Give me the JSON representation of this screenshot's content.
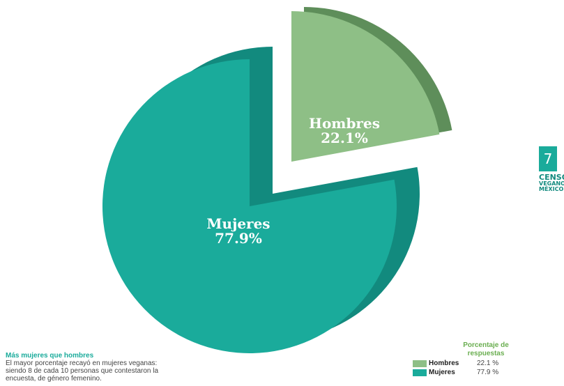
{
  "chart_data": {
    "type": "pie",
    "categories": [
      "Mujeres",
      "Hombres"
    ],
    "values": [
      77.9,
      22.1
    ],
    "value_labels": [
      "77.9%",
      "22.1%"
    ],
    "colors": {
      "mujeres_top": "#1aab9b",
      "mujeres_side": "#128a7e",
      "hombres_top": "#8ebf86",
      "hombres_side": "#5e8e5a"
    }
  },
  "slices": {
    "mujeres": {
      "name": "Mujeres",
      "pct": "77.9%"
    },
    "hombres": {
      "name": "Hombres",
      "pct": "22.1%"
    }
  },
  "tab": {
    "number": "7",
    "brand_line1": "CENSO",
    "brand_line2": "VEGANO",
    "brand_line3": "MÉXICO"
  },
  "caption": {
    "title": "Más mujeres que hombres",
    "body": "El mayor porcentaje recayó en mujeres veganas: siendo 8 de cada 10 personas que contestaron la encuesta, de género femenino."
  },
  "legend": {
    "title": "Porcentaje de respuestas",
    "items": [
      {
        "name": "Hombres",
        "value": "22.1 %",
        "color": "#8ebf86"
      },
      {
        "name": "Mujeres",
        "value": "77.9 %",
        "color": "#1aab9b"
      }
    ]
  }
}
